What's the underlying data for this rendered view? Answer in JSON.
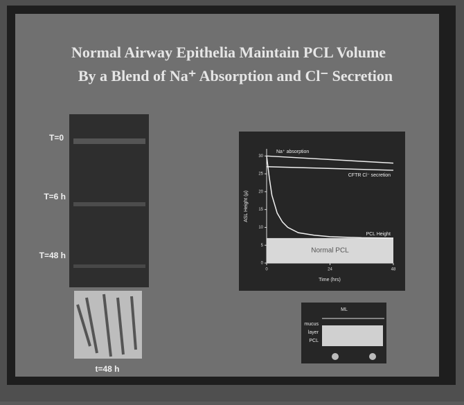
{
  "slide": {
    "title_line1": "Normal Airway Epithelia Maintain PCL Volume",
    "title_line2": "By a Blend of Na⁺ Absorption and Cl⁻ Secretion",
    "time_labels": [
      "T=0",
      "T=6 h",
      "T=48 h"
    ],
    "thumbnail_label": "t=48 h"
  },
  "plot": {
    "type": "line",
    "y_label": "ASL Height (µ)",
    "x_label": "Time (hrs)",
    "xlim": [
      0,
      48
    ],
    "ylim": [
      0,
      32
    ],
    "xticks": [
      0,
      24,
      48
    ],
    "yticks": [
      0,
      5,
      10,
      15,
      20,
      25,
      30
    ],
    "series": [
      {
        "name": "Na⁺ absorption",
        "color": "#eeeeee",
        "x": [
          0,
          48
        ],
        "values": [
          30,
          28
        ]
      },
      {
        "name": "CFTR Cl⁻ secretion",
        "color": "#eeeeee",
        "x": [
          0,
          48
        ],
        "values": [
          27,
          26
        ]
      },
      {
        "name": "PCL Height",
        "color": "#f2f2f2",
        "x": [
          0,
          1,
          2,
          4,
          6,
          8,
          12,
          18,
          24,
          36,
          48
        ],
        "values": [
          30,
          24,
          19,
          14,
          11.5,
          10,
          8.5,
          7.8,
          7.4,
          7.1,
          7
        ]
      }
    ],
    "band": {
      "name": "Normal PCL",
      "color": "#d8d8d8",
      "range": [
        0,
        7
      ]
    }
  },
  "diagram": {
    "top": "ML",
    "rows": [
      "mucus",
      "layer",
      "PCL"
    ]
  }
}
